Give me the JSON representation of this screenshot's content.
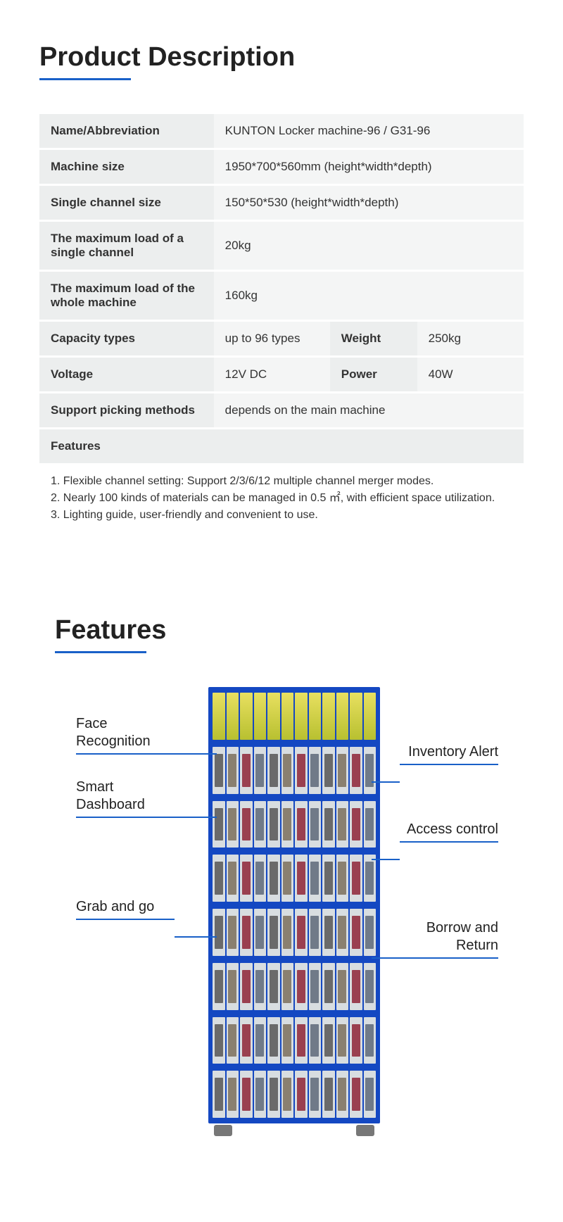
{
  "section1_title": "Product Description",
  "specs": {
    "name_label": "Name/Abbreviation",
    "name_value": "KUNTON Locker machine-96 / G31-96",
    "size_label": "Machine size",
    "size_value": "1950*700*560mm (height*width*depth)",
    "channel_label": "Single channel size",
    "channel_value": "150*50*530 (height*width*depth)",
    "maxload_single_label": "The maximum load of a single channel",
    "maxload_single_value": "20kg",
    "maxload_whole_label": "The maximum load of the whole machine",
    "maxload_whole_value": "160kg",
    "capacity_label": "Capacity types",
    "capacity_value": "up to 96 types",
    "weight_label": "Weight",
    "weight_value": "250kg",
    "voltage_label": "Voltage",
    "voltage_value": "12V DC",
    "power_label": "Power",
    "power_value": "40W",
    "picking_label": "Support picking methods",
    "picking_value": "depends on the main machine",
    "features_label": "Features",
    "feature1": "1. Flexible channel setting: Support 2/3/6/12 multiple channel merger modes.",
    "feature2": "2. Nearly 100 kinds of materials can be managed in 0.5 ㎡, with efficient space utilization.",
    "feature3": "3. Lighting guide, user-friendly and convenient to use."
  },
  "section2_title": "Features",
  "callouts": {
    "face": "Face Recognition",
    "inventory": "Inventory Alert",
    "smart": "Smart Dashboard",
    "access": "Access control",
    "grab": "Grab and go",
    "borrow": "Borrow and Return"
  },
  "colors": {
    "accent": "#1960c8",
    "machine": "#1448c2",
    "label_bg": "#eceeee",
    "value_bg": "#f4f5f5"
  }
}
